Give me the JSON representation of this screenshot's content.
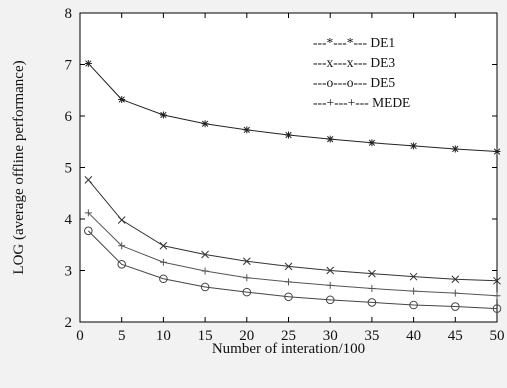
{
  "chart_data": {
    "type": "line",
    "title": "",
    "xlabel": "Number of interation/100",
    "ylabel": "LOG (average offline performance)",
    "xlim": [
      0,
      50
    ],
    "ylim": [
      2,
      8
    ],
    "xticks": [
      0,
      5,
      10,
      15,
      20,
      25,
      30,
      35,
      40,
      45,
      50
    ],
    "yticks": [
      2,
      3,
      4,
      5,
      6,
      7,
      8
    ],
    "grid": false,
    "legend_position": "top-right",
    "x": [
      1,
      5,
      10,
      15,
      20,
      25,
      30,
      35,
      40,
      45,
      50
    ],
    "series": [
      {
        "name": "DE1",
        "legend_label": "---*---*--- DE1",
        "marker": "star",
        "color": "#222222",
        "values": [
          7.02,
          6.32,
          6.02,
          5.85,
          5.73,
          5.63,
          5.55,
          5.48,
          5.42,
          5.36,
          5.31
        ]
      },
      {
        "name": "DE3",
        "legend_label": "---x---x--- DE3",
        "marker": "x",
        "color": "#333333",
        "values": [
          4.76,
          3.98,
          3.48,
          3.31,
          3.18,
          3.08,
          3.0,
          2.94,
          2.88,
          2.83,
          2.8
        ]
      },
      {
        "name": "DE5",
        "legend_label": "---o---o--- DE5",
        "marker": "circle",
        "color": "#444444",
        "values": [
          3.77,
          3.12,
          2.84,
          2.68,
          2.58,
          2.49,
          2.43,
          2.38,
          2.33,
          2.3,
          2.26
        ]
      },
      {
        "name": "MEDE",
        "legend_label": "---+---+--- MEDE",
        "marker": "plus",
        "color": "#555555",
        "values": [
          4.12,
          3.48,
          3.16,
          2.99,
          2.86,
          2.78,
          2.71,
          2.65,
          2.6,
          2.56,
          2.51
        ]
      }
    ]
  }
}
